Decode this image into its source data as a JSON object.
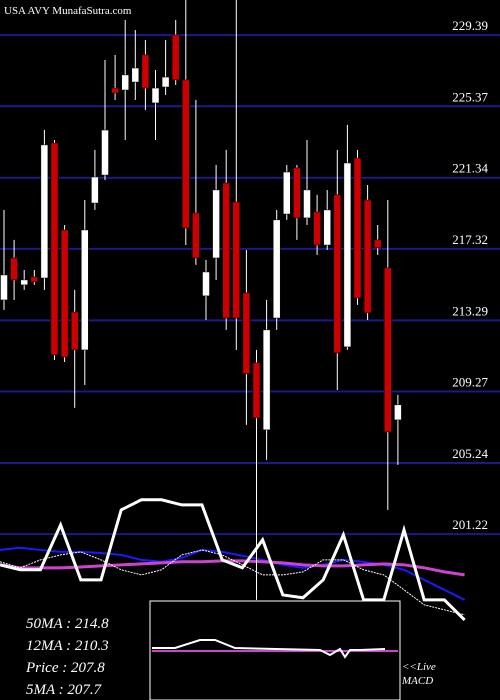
{
  "chart_data": {
    "type": "candlestick",
    "title": "USA AVY MunafaSutra.com",
    "ylim": [
      191.86,
      231.37
    ],
    "yticks": [
      229.39,
      225.37,
      221.34,
      217.32,
      213.29,
      209.27,
      205.24,
      201.22
    ],
    "grid": true,
    "grid_color": "#1a1a8c",
    "up_color": "#ffffff",
    "down_color": "#cc0000",
    "wick_color": "#ffffff",
    "candles": [
      {
        "open": 214.44,
        "high": 219.52,
        "low": 213.88,
        "close": 215.85
      },
      {
        "open": 216.81,
        "high": 217.83,
        "low": 214.44,
        "close": 215.57
      },
      {
        "open": 215.29,
        "high": 216.13,
        "low": 215.01,
        "close": 215.57
      },
      {
        "open": 215.74,
        "high": 216.13,
        "low": 215.29,
        "close": 215.46
      },
      {
        "open": 215.68,
        "high": 224.03,
        "low": 215.01,
        "close": 223.19
      },
      {
        "open": 223.3,
        "high": 223.47,
        "low": 211.06,
        "close": 211.34
      },
      {
        "open": 218.39,
        "high": 218.67,
        "low": 210.94,
        "close": 211.22
      },
      {
        "open": 213.76,
        "high": 215.01,
        "low": 208.35,
        "close": 211.62
      },
      {
        "open": 211.62,
        "high": 220.08,
        "low": 209.64,
        "close": 218.39
      },
      {
        "open": 219.91,
        "high": 222.91,
        "low": 219.52,
        "close": 221.38
      },
      {
        "open": 221.49,
        "high": 227.98,
        "low": 221.21,
        "close": 224.03
      },
      {
        "open": 226.4,
        "high": 228.27,
        "low": 225.73,
        "close": 226.12
      },
      {
        "open": 226.29,
        "high": 230.24,
        "low": 223.47,
        "close": 227.14
      },
      {
        "open": 226.74,
        "high": 229.68,
        "low": 225.73,
        "close": 227.53
      },
      {
        "open": 228.27,
        "high": 229.11,
        "low": 225.16,
        "close": 226.4
      },
      {
        "open": 225.56,
        "high": 227.42,
        "low": 223.47,
        "close": 226.4
      },
      {
        "open": 226.46,
        "high": 229.11,
        "low": 226.01,
        "close": 227.02
      },
      {
        "open": 229.4,
        "high": 230.24,
        "low": 226.57,
        "close": 226.86
      },
      {
        "open": 226.86,
        "high": 231.37,
        "low": 217.54,
        "close": 218.5
      },
      {
        "open": 219.35,
        "high": 225.73,
        "low": 216.42,
        "close": 216.81
      },
      {
        "open": 214.67,
        "high": 216.7,
        "low": 213.31,
        "close": 216.02
      },
      {
        "open": 216.81,
        "high": 222.06,
        "low": 215.57,
        "close": 220.65
      },
      {
        "open": 221.04,
        "high": 222.91,
        "low": 212.75,
        "close": 213.42
      },
      {
        "open": 219.97,
        "high": 231.37,
        "low": 211.62,
        "close": 213.42
      },
      {
        "open": 214.84,
        "high": 217.26,
        "low": 207.39,
        "close": 210.27
      },
      {
        "open": 210.89,
        "high": 211.62,
        "low": 197.51,
        "close": 207.78
      },
      {
        "open": 207.11,
        "high": 214.44,
        "low": 205.41,
        "close": 212.75
      },
      {
        "open": 213.42,
        "high": 219.52,
        "low": 212.75,
        "close": 218.96
      },
      {
        "open": 219.29,
        "high": 222.06,
        "low": 218.96,
        "close": 221.66
      },
      {
        "open": 221.89,
        "high": 222.06,
        "low": 217.83,
        "close": 219.07
      },
      {
        "open": 219.07,
        "high": 223.47,
        "low": 218.67,
        "close": 220.65
      },
      {
        "open": 219.41,
        "high": 220.37,
        "low": 216.98,
        "close": 217.54
      },
      {
        "open": 217.54,
        "high": 220.65,
        "low": 217.26,
        "close": 219.52
      },
      {
        "open": 220.37,
        "high": 222.91,
        "low": 209.36,
        "close": 211.45
      },
      {
        "open": 211.79,
        "high": 224.32,
        "low": 211.62,
        "close": 222.17
      },
      {
        "open": 222.45,
        "high": 222.91,
        "low": 214.16,
        "close": 214.55
      },
      {
        "open": 220.08,
        "high": 220.93,
        "low": 213.31,
        "close": 213.71
      },
      {
        "open": 217.83,
        "high": 218.67,
        "low": 216.98,
        "close": 217.38
      },
      {
        "open": 216.25,
        "high": 220.08,
        "low": 202.59,
        "close": 206.99
      },
      {
        "open": 207.67,
        "high": 209.08,
        "low": 205.13,
        "close": 208.52
      }
    ],
    "series": [
      {
        "color": "#1a1aff",
        "width": 2,
        "values": [
          200.33,
          200.45,
          200.33,
          200.22,
          200.22,
          200.16,
          200.05,
          199.77,
          199.66,
          199.88,
          200.33,
          200.22,
          200.0,
          199.77,
          199.49,
          199.32,
          199.49,
          199.77,
          199.66,
          199.49,
          199.21,
          198.64,
          198.08,
          197.51
        ]
      },
      {
        "color": "#cc44cc",
        "width": 3,
        "values": [
          199.49,
          199.32,
          199.32,
          199.32,
          199.37,
          199.43,
          199.49,
          199.54,
          199.6,
          199.66,
          199.66,
          199.71,
          199.71,
          199.66,
          199.6,
          199.49,
          199.43,
          199.43,
          199.49,
          199.54,
          199.49,
          199.32,
          199.09,
          198.92
        ]
      },
      {
        "color": "#ffffff",
        "width": 1,
        "values": [
          199.66,
          199.32,
          199.77,
          200.05,
          200.22,
          199.77,
          199.21,
          198.92,
          199.21,
          200.05,
          200.33,
          200.05,
          199.49,
          198.92,
          198.92,
          199.09,
          199.77,
          199.77,
          199.21,
          198.92,
          198.08,
          197.23,
          196.95,
          196.67
        ]
      },
      {
        "color": "#ffffff",
        "width": 3,
        "values": [
          199.49,
          199.21,
          199.21,
          201.74,
          198.64,
          198.64,
          202.59,
          203.16,
          203.16,
          202.87,
          202.87,
          199.77,
          199.32,
          200.9,
          197.79,
          197.63,
          198.64,
          201.18,
          197.51,
          197.51,
          201.46,
          197.51,
          197.51,
          196.38
        ]
      }
    ],
    "stats": [
      "50MA : 214.8",
      "12MA : 210.3",
      "Price   : 207.8",
      "5MA : 207.7"
    ],
    "macd_label": [
      "<<Live",
      "MACD"
    ]
  }
}
